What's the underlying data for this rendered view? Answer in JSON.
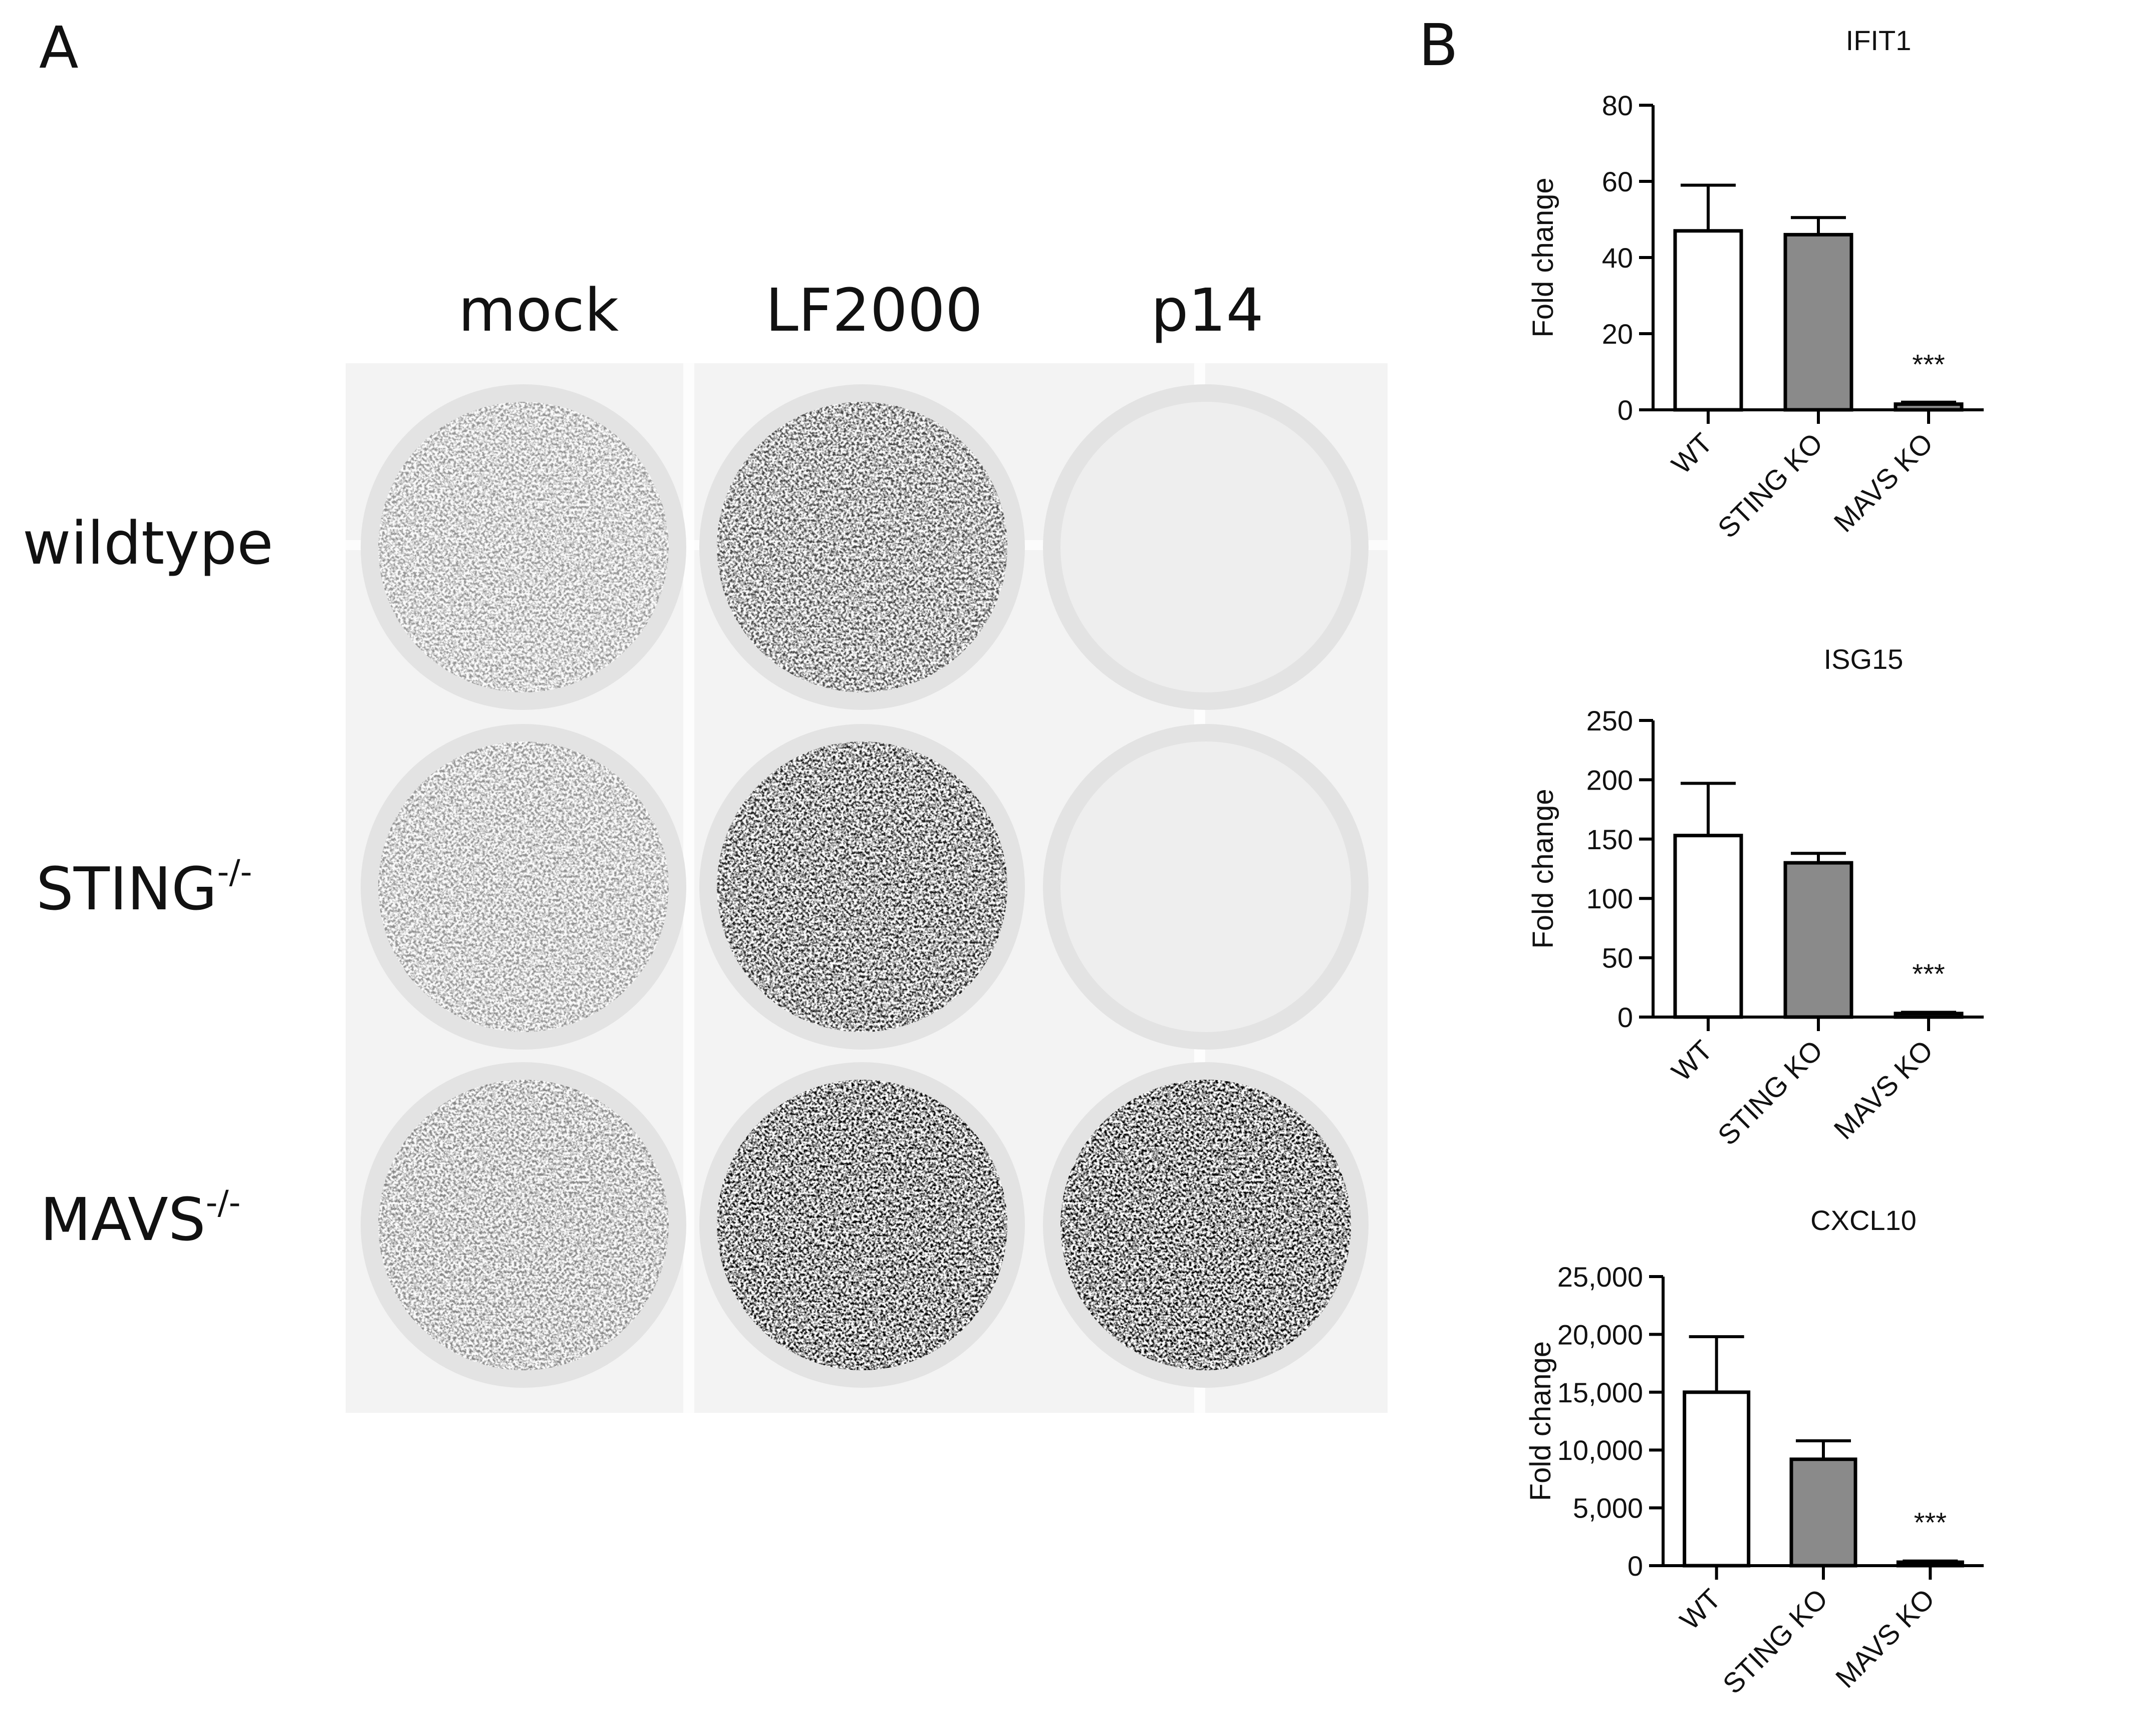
{
  "panel_a": {
    "letter": "A",
    "columns": [
      "mock",
      "LF2000",
      "p14"
    ],
    "rows": [
      {
        "name": "wildtype",
        "sup": ""
      },
      {
        "name": "STING",
        "sup": "-/-"
      },
      {
        "name": "MAVS",
        "sup": "-/-"
      }
    ],
    "plaque_density": [
      [
        0.18,
        0.55,
        0.0
      ],
      [
        0.2,
        0.75,
        0.0
      ],
      [
        0.25,
        0.85,
        1.0
      ]
    ]
  },
  "panel_b": {
    "letter": "B"
  },
  "colors": {
    "bar_wt": "#ffffff",
    "bar_sting": "#8a8a8a",
    "bar_mavs": "#8a8a8a",
    "stroke": "#000000"
  },
  "chart_data": [
    {
      "type": "bar",
      "title": "IFIT1",
      "ylabel": "Fold change",
      "categories": [
        "WT",
        "STING KO",
        "MAVS KO"
      ],
      "values": [
        47,
        46,
        1.5
      ],
      "errors": [
        12,
        4.5,
        0.5
      ],
      "ylim": [
        0,
        80
      ],
      "yticks": [
        0,
        20,
        40,
        60,
        80
      ],
      "ytick_labels": [
        "0",
        "20",
        "40",
        "60",
        "80"
      ],
      "annotations": [
        "",
        "",
        "***"
      ]
    },
    {
      "type": "bar",
      "title": "ISG15",
      "ylabel": "Fold change",
      "categories": [
        "WT",
        "STING KO",
        "MAVS KO"
      ],
      "values": [
        153,
        130,
        3
      ],
      "errors": [
        44,
        8,
        1
      ],
      "ylim": [
        0,
        250
      ],
      "yticks": [
        0,
        50,
        100,
        150,
        200,
        250
      ],
      "ytick_labels": [
        "0",
        "50",
        "100",
        "150",
        "200",
        "250"
      ],
      "annotations": [
        "",
        "",
        "***"
      ]
    },
    {
      "type": "bar",
      "title": "CXCL10",
      "ylabel": "Fold change",
      "categories": [
        "WT",
        "STING KO",
        "MAVS KO"
      ],
      "values": [
        15000,
        9200,
        300
      ],
      "errors": [
        4800,
        1600,
        100
      ],
      "ylim": [
        0,
        25000
      ],
      "yticks": [
        0,
        5000,
        10000,
        15000,
        20000,
        25000
      ],
      "ytick_labels": [
        "0",
        "5,000",
        "10,000",
        "15,000",
        "20,000",
        "25,000"
      ],
      "annotations": [
        "",
        "",
        "***"
      ]
    }
  ]
}
